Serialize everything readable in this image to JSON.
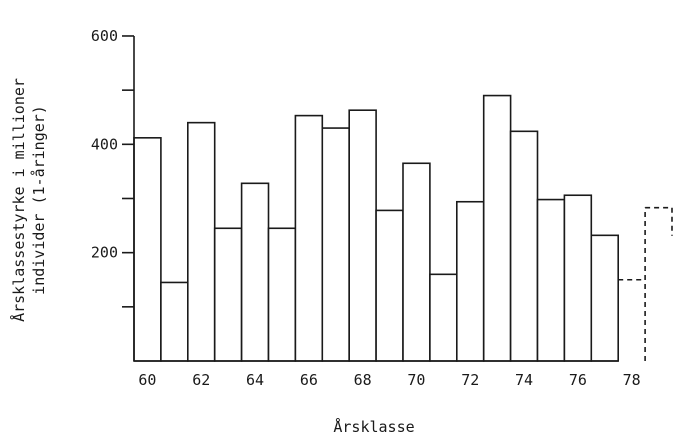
{
  "chart_data": {
    "type": "bar",
    "ylabel_lines": [
      "Årsklassestyrke i millioner",
      "individer (1-åringer)"
    ],
    "xlabel": "Årsklasse",
    "ylim": [
      0,
      600
    ],
    "xlim": [
      59.5,
      79.5
    ],
    "y_ticks_labeled": [
      200,
      400,
      600
    ],
    "y_ticks_minor": [
      100,
      300,
      500
    ],
    "x_tick_labels": [
      "60",
      "62",
      "64",
      "66",
      "68",
      "70",
      "72",
      "74",
      "76",
      "78"
    ],
    "years": [
      60,
      61,
      62,
      63,
      64,
      65,
      66,
      67,
      68,
      69,
      70,
      71,
      72,
      73,
      74,
      75,
      76,
      77
    ],
    "values": [
      412,
      145,
      440,
      245,
      328,
      245,
      453,
      430,
      463,
      278,
      365,
      160,
      294,
      490,
      424,
      298,
      306,
      232
    ],
    "estimated": {
      "years": [
        78,
        79
      ],
      "values": [
        150,
        283
      ]
    },
    "grid": false
  }
}
